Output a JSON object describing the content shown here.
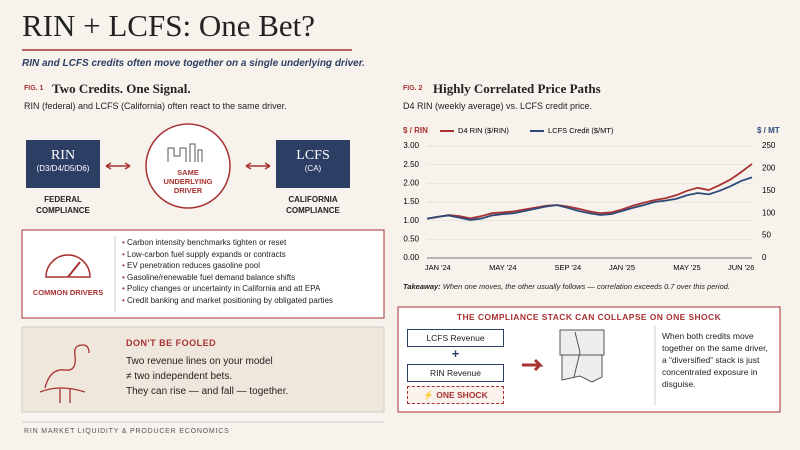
{
  "header": {
    "title": "RIN + LCFS: One Bet?",
    "subtitle": "RIN and LCFS credits often move together on a single underlying driver."
  },
  "fig1": {
    "label": "FIG. 1",
    "title": "Two Credits. One Signal.",
    "description": "RIN (federal) and LCFS (California) often react to the same driver.",
    "rin": {
      "name": "RIN",
      "sub": "(D3/D4/D5/D6)",
      "caption": [
        "FEDERAL",
        "COMPLIANCE"
      ]
    },
    "driver": [
      "SAME",
      "UNDERLYING",
      "DRIVER"
    ],
    "lcfs": {
      "name": "LCFS",
      "sub": "(CA)",
      "caption": [
        "CALIFORNIA",
        "COMPLIANCE"
      ]
    }
  },
  "drivers": {
    "title": "COMMON DRIVERS",
    "items": [
      "Carbon intensity benchmarks tighten or reset",
      "Low-carbon fuel supply expands or contracts",
      "EV penetration reduces gasoline pool",
      "Gasoline/renewable fuel demand balance shifts",
      "Policy changes or uncertainty in California and att EPA",
      "Credit banking and market positioning by obligated parties"
    ]
  },
  "fooled": {
    "title": "DON'T BE FOOLED",
    "lines": [
      "Two revenue lines on your model",
      "≠ two independent bets.",
      "They can rise — and fall — together."
    ]
  },
  "chart_data": {
    "type": "line",
    "label": "FIG. 2",
    "title": "Highly Correlated Price Paths",
    "subtitle": "D4 RIN (weekly average) vs. LCFS credit price.",
    "ylabel": "$ / RIN",
    "y2label": "$ / MT",
    "categories": [
      null,
      "JAN '24",
      null,
      null,
      null,
      null,
      null,
      "MAY '24",
      null,
      null,
      null,
      null,
      null,
      "SEP '24",
      null,
      null,
      null,
      null,
      "JAN '25",
      null,
      null,
      null,
      null,
      null,
      "MAY '25",
      null,
      null,
      null,
      null,
      "JUN '26",
      null
    ],
    "series": [
      {
        "name": "D4 RIN ($/RIN)",
        "color": "#a83232",
        "values": [
          1.05,
          1.1,
          1.15,
          1.12,
          1.06,
          1.12,
          1.2,
          1.22,
          1.25,
          1.3,
          1.35,
          1.4,
          1.42,
          1.38,
          1.32,
          1.25,
          1.2,
          1.22,
          1.3,
          1.4,
          1.48,
          1.55,
          1.6,
          1.68,
          1.8,
          1.88,
          1.82,
          1.95,
          2.1,
          2.3,
          2.52
        ]
      },
      {
        "name": "LCFS Credit ($/MT)",
        "color": "#2f4a7a",
        "axis": "y2",
        "values": [
          88,
          92,
          95,
          90,
          85,
          88,
          95,
          98,
          100,
          105,
          110,
          115,
          118,
          112,
          105,
          100,
          96,
          98,
          105,
          112,
          118,
          125,
          128,
          132,
          140,
          145,
          142,
          150,
          160,
          172,
          180
        ]
      }
    ],
    "ylim": [
      0,
      3
    ],
    "yticks": [
      {
        "value": 0,
        "label": "0.00"
      },
      {
        "value": 0.5,
        "label": "0.50"
      },
      {
        "value": 1,
        "label": "1.00"
      },
      {
        "value": 1.5,
        "label": "1.50"
      },
      {
        "value": 2,
        "label": "2.00"
      },
      {
        "value": 2.5,
        "label": "2.50"
      },
      {
        "value": 3,
        "label": "3.00"
      }
    ],
    "y2lim": [
      0,
      250
    ],
    "y2ticks": [
      0,
      50,
      100,
      150,
      200,
      250
    ],
    "grid": true
  },
  "takeaway": {
    "lead": "Takeaway:",
    "text": "When one moves, the other usually follows — correlation exceeds 0.7 over this period."
  },
  "stack": {
    "title": "THE COMPLIANCE STACK CAN COLLAPSE ON ONE SHOCK",
    "items": [
      "LCFS Revenue",
      "+",
      "RIN Revenue"
    ],
    "shock": "ONE SHOCK",
    "text": "When both credits move together on the same driver, a “diversified” stack is just concentrated exposure in disguise."
  },
  "footer": "RIN MARKET LIQUIDITY & PRODUCER ECONOMICS"
}
